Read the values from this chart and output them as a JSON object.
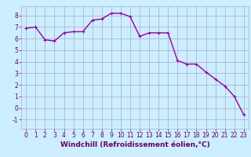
{
  "x": [
    0,
    1,
    2,
    3,
    4,
    5,
    6,
    7,
    8,
    9,
    10,
    11,
    12,
    13,
    14,
    15,
    16,
    17,
    18,
    19,
    20,
    21,
    22,
    23
  ],
  "y": [
    6.9,
    7.0,
    5.9,
    5.8,
    6.5,
    6.6,
    6.6,
    7.6,
    7.7,
    8.2,
    8.2,
    7.9,
    6.2,
    6.5,
    6.5,
    6.5,
    4.1,
    3.8,
    3.8,
    3.1,
    2.5,
    1.9,
    1.0,
    -0.6
  ],
  "line_color": "#990099",
  "marker": "+",
  "marker_size": 3,
  "line_width": 1.0,
  "bg_color": "#cceeff",
  "grid_color": "#aaaacc",
  "xlabel": "Windchill (Refroidissement éolien,°C)",
  "xlabel_color": "#660066",
  "xlabel_fontsize": 6.5,
  "tick_color": "#660066",
  "tick_fontsize": 5.5,
  "ylim": [
    -1.8,
    8.8
  ],
  "xlim": [
    -0.5,
    23.5
  ],
  "yticks": [
    -1,
    0,
    1,
    2,
    3,
    4,
    5,
    6,
    7,
    8
  ],
  "xticks": [
    0,
    1,
    2,
    3,
    4,
    5,
    6,
    7,
    8,
    9,
    10,
    11,
    12,
    13,
    14,
    15,
    16,
    17,
    18,
    19,
    20,
    21,
    22,
    23
  ],
  "spine_color": "#aaaacc"
}
